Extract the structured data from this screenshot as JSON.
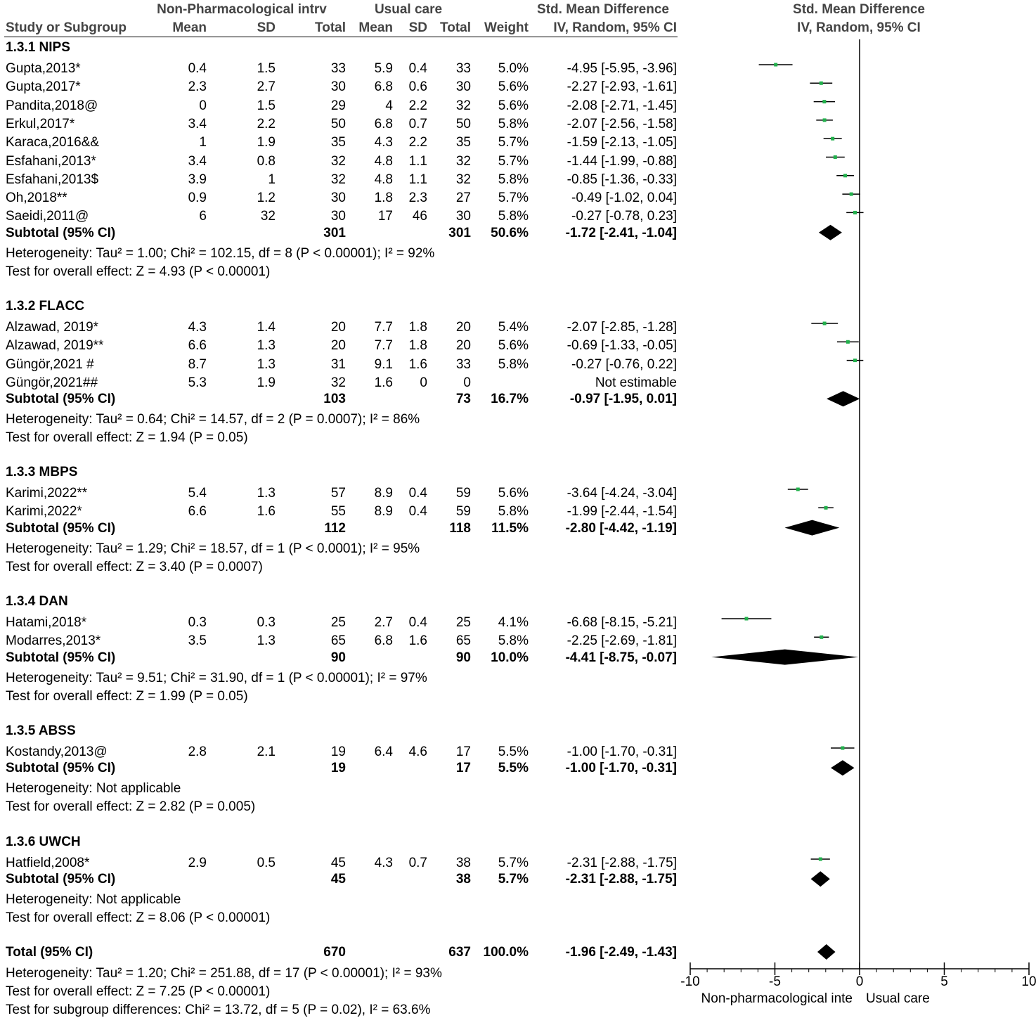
{
  "header": {
    "group1": "Non-Pharmacological intrv",
    "group2": "Usual care",
    "smd_title": "Std. Mean Difference",
    "study_col": "Study or Subgroup",
    "mean": "Mean",
    "sd": "SD",
    "total": "Total",
    "weight": "Weight",
    "smd_method": "IV, Random, 95% CI",
    "plot_title": "Std. Mean Difference",
    "plot_method": "IV, Random, 95% CI"
  },
  "subgroups": [
    {
      "title": "1.3.1 NIPS",
      "studies": [
        {
          "name": "Gupta,2013*",
          "m1": "0.4",
          "sd1": "1.5",
          "n1": "33",
          "m2": "5.9",
          "sd2": "0.4",
          "n2": "33",
          "weight": "5.0%",
          "ci": "-4.95 [-5.95, -3.96]",
          "est": -4.95,
          "lo": -5.95,
          "hi": -3.96
        },
        {
          "name": "Gupta,2017*",
          "m1": "2.3",
          "sd1": "2.7",
          "n1": "30",
          "m2": "6.8",
          "sd2": "0.6",
          "n2": "30",
          "weight": "5.6%",
          "ci": "-2.27 [-2.93, -1.61]",
          "est": -2.27,
          "lo": -2.93,
          "hi": -1.61
        },
        {
          "name": "Pandita,2018@",
          "m1": "0",
          "sd1": "1.5",
          "n1": "29",
          "m2": "4",
          "sd2": "2.2",
          "n2": "32",
          "weight": "5.6%",
          "ci": "-2.08 [-2.71, -1.45]",
          "est": -2.08,
          "lo": -2.71,
          "hi": -1.45
        },
        {
          "name": "Erkul,2017*",
          "m1": "3.4",
          "sd1": "2.2",
          "n1": "50",
          "m2": "6.8",
          "sd2": "0.7",
          "n2": "50",
          "weight": "5.8%",
          "ci": "-2.07 [-2.56, -1.58]",
          "est": -2.07,
          "lo": -2.56,
          "hi": -1.58
        },
        {
          "name": "Karaca,2016&&",
          "m1": "1",
          "sd1": "1.9",
          "n1": "35",
          "m2": "4.3",
          "sd2": "2.2",
          "n2": "35",
          "weight": "5.7%",
          "ci": "-1.59 [-2.13, -1.05]",
          "est": -1.59,
          "lo": -2.13,
          "hi": -1.05
        },
        {
          "name": "Esfahani,2013*",
          "m1": "3.4",
          "sd1": "0.8",
          "n1": "32",
          "m2": "4.8",
          "sd2": "1.1",
          "n2": "32",
          "weight": "5.7%",
          "ci": "-1.44 [-1.99, -0.88]",
          "est": -1.44,
          "lo": -1.99,
          "hi": -0.88
        },
        {
          "name": "Esfahani,2013$",
          "m1": "3.9",
          "sd1": "1",
          "n1": "32",
          "m2": "4.8",
          "sd2": "1.1",
          "n2": "32",
          "weight": "5.8%",
          "ci": "-0.85 [-1.36, -0.33]",
          "est": -0.85,
          "lo": -1.36,
          "hi": -0.33
        },
        {
          "name": "Oh,2018**",
          "m1": "0.9",
          "sd1": "1.2",
          "n1": "30",
          "m2": "1.8",
          "sd2": "2.3",
          "n2": "27",
          "weight": "5.7%",
          "ci": "-0.49 [-1.02, 0.04]",
          "est": -0.49,
          "lo": -1.02,
          "hi": 0.04
        },
        {
          "name": "Saeidi,2011@",
          "m1": "6",
          "sd1": "32",
          "n1": "30",
          "m2": "17",
          "sd2": "46",
          "n2": "30",
          "weight": "5.8%",
          "ci": "-0.27 [-0.78, 0.23]",
          "est": -0.27,
          "lo": -0.78,
          "hi": 0.23
        }
      ],
      "subtotal": {
        "label": "Subtotal (95% CI)",
        "n1": "301",
        "n2": "301",
        "weight": "50.6%",
        "ci": "-1.72 [-2.41, -1.04]",
        "est": -1.72,
        "lo": -2.41,
        "hi": -1.04
      },
      "heterogeneity": "Heterogeneity: Tau² = 1.00; Chi² = 102.15, df = 8 (P < 0.00001); I² = 92%",
      "overall": "Test for overall effect: Z = 4.93 (P < 0.00001)"
    },
    {
      "title": "1.3.2 FLACC",
      "studies": [
        {
          "name": "Alzawad, 2019*",
          "m1": "4.3",
          "sd1": "1.4",
          "n1": "20",
          "m2": "7.7",
          "sd2": "1.8",
          "n2": "20",
          "weight": "5.4%",
          "ci": "-2.07 [-2.85, -1.28]",
          "est": -2.07,
          "lo": -2.85,
          "hi": -1.28
        },
        {
          "name": "Alzawad, 2019**",
          "m1": "6.6",
          "sd1": "1.3",
          "n1": "20",
          "m2": "7.7",
          "sd2": "1.8",
          "n2": "20",
          "weight": "5.6%",
          "ci": "-0.69 [-1.33, -0.05]",
          "est": -0.69,
          "lo": -1.33,
          "hi": -0.05
        },
        {
          "name": "Güngör,2021 #",
          "m1": "8.7",
          "sd1": "1.3",
          "n1": "31",
          "m2": "9.1",
          "sd2": "1.6",
          "n2": "33",
          "weight": "5.8%",
          "ci": "-0.27 [-0.76, 0.22]",
          "est": -0.27,
          "lo": -0.76,
          "hi": 0.22
        },
        {
          "name": "Güngör,2021##",
          "m1": "5.3",
          "sd1": "1.9",
          "n1": "32",
          "m2": "1.6",
          "sd2": "0",
          "n2": "0",
          "weight": "",
          "ci": "Not estimable",
          "est": null,
          "lo": null,
          "hi": null
        }
      ],
      "subtotal": {
        "label": "Subtotal (95% CI)",
        "n1": "103",
        "n2": "73",
        "weight": "16.7%",
        "ci": "-0.97 [-1.95, 0.01]",
        "est": -0.97,
        "lo": -1.95,
        "hi": 0.01
      },
      "heterogeneity": "Heterogeneity: Tau² = 0.64; Chi² = 14.57, df = 2 (P = 0.0007); I² = 86%",
      "overall": "Test for overall effect: Z = 1.94 (P = 0.05)"
    },
    {
      "title": "1.3.3 MBPS",
      "studies": [
        {
          "name": "Karimi,2022**",
          "m1": "5.4",
          "sd1": "1.3",
          "n1": "57",
          "m2": "8.9",
          "sd2": "0.4",
          "n2": "59",
          "weight": "5.6%",
          "ci": "-3.64 [-4.24, -3.04]",
          "est": -3.64,
          "lo": -4.24,
          "hi": -3.04
        },
        {
          "name": "Karimi,2022*",
          "m1": "6.6",
          "sd1": "1.6",
          "n1": "55",
          "m2": "8.9",
          "sd2": "0.4",
          "n2": "59",
          "weight": "5.8%",
          "ci": "-1.99 [-2.44, -1.54]",
          "est": -1.99,
          "lo": -2.44,
          "hi": -1.54
        }
      ],
      "subtotal": {
        "label": "Subtotal (95% CI)",
        "n1": "112",
        "n2": "118",
        "weight": "11.5%",
        "ci": "-2.80 [-4.42, -1.19]",
        "est": -2.8,
        "lo": -4.42,
        "hi": -1.19
      },
      "heterogeneity": "Heterogeneity: Tau² = 1.29; Chi² = 18.57, df = 1 (P < 0.0001); I² = 95%",
      "overall": "Test for overall effect: Z = 3.40 (P = 0.0007)"
    },
    {
      "title": "1.3.4 DAN",
      "studies": [
        {
          "name": "Hatami,2018*",
          "m1": "0.3",
          "sd1": "0.3",
          "n1": "25",
          "m2": "2.7",
          "sd2": "0.4",
          "n2": "25",
          "weight": "4.1%",
          "ci": "-6.68 [-8.15, -5.21]",
          "est": -6.68,
          "lo": -8.15,
          "hi": -5.21
        },
        {
          "name": "Modarres,2013*",
          "m1": "3.5",
          "sd1": "1.3",
          "n1": "65",
          "m2": "6.8",
          "sd2": "1.6",
          "n2": "65",
          "weight": "5.8%",
          "ci": "-2.25 [-2.69, -1.81]",
          "est": -2.25,
          "lo": -2.69,
          "hi": -1.81
        }
      ],
      "subtotal": {
        "label": "Subtotal (95% CI)",
        "n1": "90",
        "n2": "90",
        "weight": "10.0%",
        "ci": "-4.41 [-8.75, -0.07]",
        "est": -4.41,
        "lo": -8.75,
        "hi": -0.07
      },
      "heterogeneity": "Heterogeneity: Tau² = 9.51; Chi² = 31.90, df = 1 (P < 0.00001); I² = 97%",
      "overall": "Test for overall effect: Z = 1.99 (P = 0.05)"
    },
    {
      "title": "1.3.5 ABSS",
      "studies": [
        {
          "name": "Kostandy,2013@",
          "m1": "2.8",
          "sd1": "2.1",
          "n1": "19",
          "m2": "6.4",
          "sd2": "4.6",
          "n2": "17",
          "weight": "5.5%",
          "ci": "-1.00 [-1.70, -0.31]",
          "est": -1.0,
          "lo": -1.7,
          "hi": -0.31
        }
      ],
      "subtotal": {
        "label": "Subtotal (95% CI)",
        "n1": "19",
        "n2": "17",
        "weight": "5.5%",
        "ci": "-1.00 [-1.70, -0.31]",
        "est": -1.0,
        "lo": -1.7,
        "hi": -0.31
      },
      "heterogeneity": "Heterogeneity: Not applicable",
      "overall": "Test for overall effect: Z = 2.82 (P = 0.005)"
    },
    {
      "title": "1.3.6 UWCH",
      "studies": [
        {
          "name": "Hatfield,2008*",
          "m1": "2.9",
          "sd1": "0.5",
          "n1": "45",
          "m2": "4.3",
          "sd2": "0.7",
          "n2": "38",
          "weight": "5.7%",
          "ci": "-2.31 [-2.88, -1.75]",
          "est": -2.31,
          "lo": -2.88,
          "hi": -1.75
        }
      ],
      "subtotal": {
        "label": "Subtotal (95% CI)",
        "n1": "45",
        "n2": "38",
        "weight": "5.7%",
        "ci": "-2.31 [-2.88, -1.75]",
        "est": -2.31,
        "lo": -2.88,
        "hi": -1.75
      },
      "heterogeneity": "Heterogeneity: Not applicable",
      "overall": "Test for overall effect: Z = 8.06 (P < 0.00001)"
    }
  ],
  "total": {
    "label": "Total (95% CI)",
    "n1": "670",
    "n2": "637",
    "weight": "100.0%",
    "ci": "-1.96 [-2.49, -1.43]",
    "est": -1.96,
    "lo": -2.49,
    "hi": -1.43
  },
  "footer": {
    "heterogeneity": "Heterogeneity: Tau² = 1.20; Chi² = 251.88, df = 17 (P < 0.00001); I² = 93%",
    "overall": "Test for overall effect: Z = 7.25 (P < 0.00001)",
    "subgroup": "Test for subgroup differences: Chi² = 13.72, df = 5 (P = 0.02), I² = 63.6%"
  },
  "chart_data": {
    "type": "forest",
    "xlim": [
      -10,
      10
    ],
    "ticks": [
      "-10",
      "-5",
      "0",
      "5",
      "10"
    ],
    "tick_values": [
      -10,
      -5,
      0,
      5,
      10
    ],
    "left_label": "Non-pharmacological inte",
    "right_label": "Usual care",
    "marker_color": "#22b14c"
  }
}
